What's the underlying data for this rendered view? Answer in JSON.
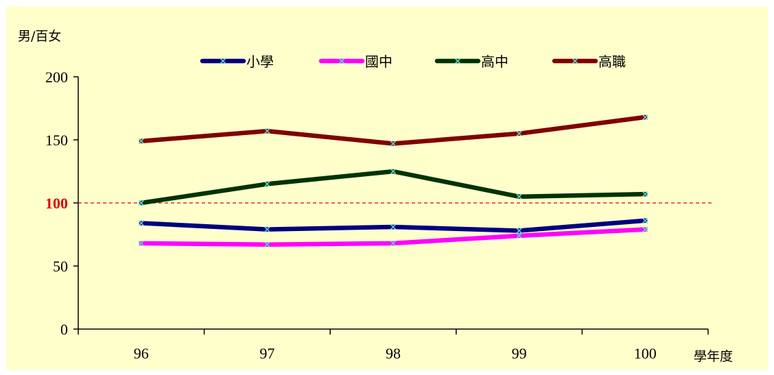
{
  "chart_data": {
    "type": "line",
    "title": "",
    "ylabel": "男/百女",
    "xlabel": "學年度",
    "categories": [
      "96",
      "97",
      "98",
      "99",
      "100"
    ],
    "ylim": [
      0,
      200
    ],
    "yticks": [
      "0",
      "50",
      "100",
      "150",
      "200"
    ],
    "reference_line": {
      "value": 100,
      "label": "100",
      "color": "#e00000",
      "style": "dashed"
    },
    "legend_position": "top",
    "grid": false,
    "series": [
      {
        "name": "小學",
        "color": "#000080",
        "values": [
          84,
          79,
          81,
          78,
          86
        ]
      },
      {
        "name": "國中",
        "color": "#ff00ff",
        "values": [
          68,
          67,
          68,
          74,
          79
        ]
      },
      {
        "name": "高中",
        "color": "#003300",
        "values": [
          100,
          115,
          125,
          105,
          107
        ]
      },
      {
        "name": "高職",
        "color": "#800000",
        "values": [
          149,
          157,
          147,
          155,
          168
        ]
      }
    ]
  }
}
